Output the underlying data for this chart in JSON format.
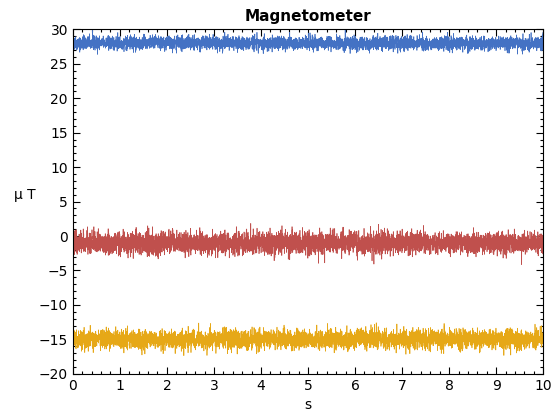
{
  "title": "Magnetometer",
  "xlabel": "s",
  "ylabel": "μ T",
  "xlim": [
    0,
    10
  ],
  "ylim": [
    -20,
    30
  ],
  "yticks": [
    -20,
    -15,
    -10,
    -5,
    0,
    5,
    10,
    15,
    20,
    25,
    30
  ],
  "xticks": [
    0,
    1,
    2,
    3,
    4,
    5,
    6,
    7,
    8,
    9,
    10
  ],
  "line1_mean": 28.0,
  "line1_noise": 0.5,
  "line1_color": "#4472C4",
  "line2_mean": -1.0,
  "line2_noise": 0.8,
  "line2_color": "#C0504D",
  "line3_mean": -15.0,
  "line3_noise": 0.7,
  "line3_color": "#E6A817",
  "n_points": 5000,
  "linewidth": 0.5,
  "title_fontsize": 11,
  "label_fontsize": 10,
  "tick_fontsize": 10,
  "background_color": "#ffffff"
}
